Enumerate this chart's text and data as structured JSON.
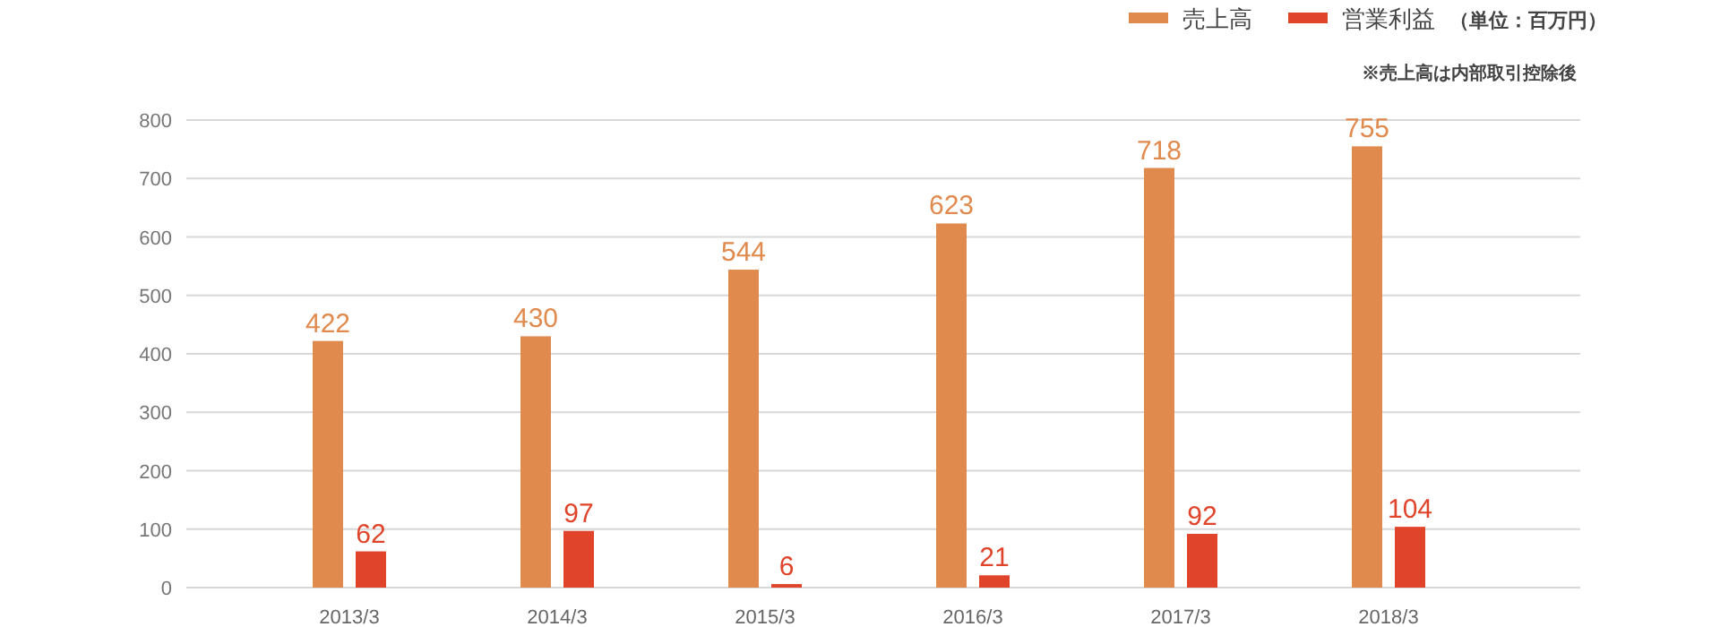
{
  "chart_data": {
    "type": "bar",
    "categories": [
      "2013/3",
      "2014/3",
      "2015/3",
      "2016/3",
      "2017/3",
      "2018/3"
    ],
    "series": [
      {
        "name": "売上高",
        "color": "#e08a4e",
        "values": [
          422,
          430,
          544,
          623,
          718,
          755
        ]
      },
      {
        "name": "営業利益",
        "color": "#e0442a",
        "values": [
          62,
          97,
          6,
          21,
          92,
          104
        ]
      }
    ],
    "ylim": [
      0,
      800
    ],
    "yticks": [
      0,
      100,
      200,
      300,
      400,
      500,
      600,
      700,
      800
    ],
    "grid": "y",
    "legend": "top right",
    "data_labels": true,
    "annotations": [
      "（単位：百万円）",
      "※売上高は内部取引控除後"
    ]
  }
}
